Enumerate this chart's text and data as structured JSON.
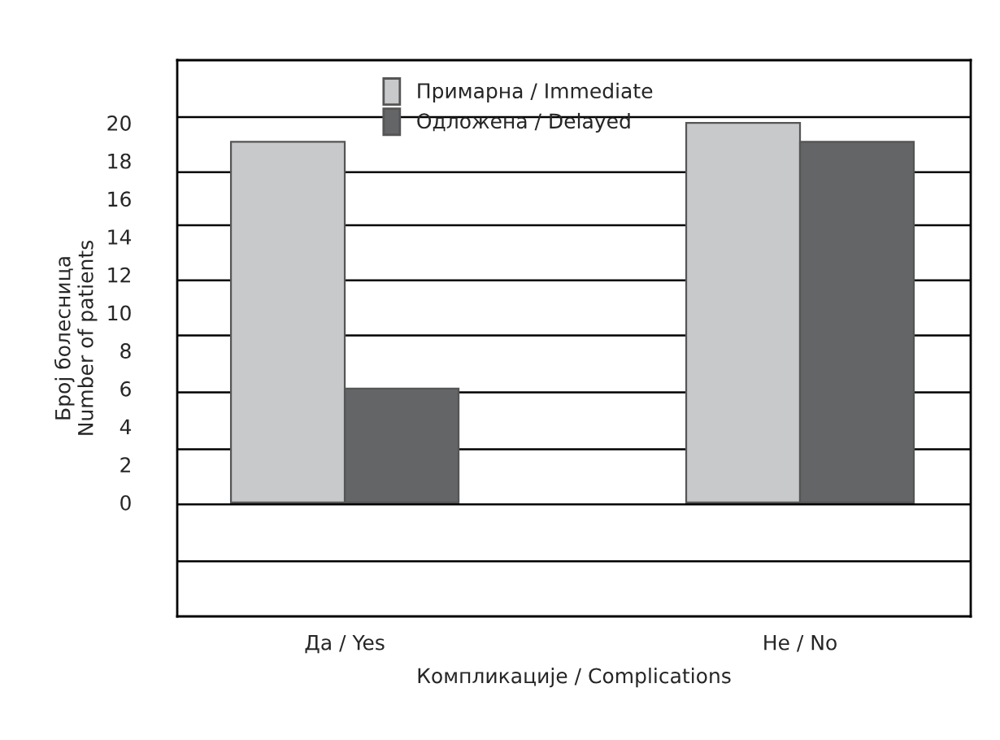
{
  "chart_data": {
    "type": "bar",
    "xlabel": "Компликације / Complications",
    "ylabel": "Број болесница\nNumber of patients",
    "categories": [
      "Да / Yes",
      "Не / No"
    ],
    "series": [
      {
        "name": "Примарна / Immediate",
        "color": "#c8c9cb",
        "values": [
          19,
          20
        ]
      },
      {
        "name": "Одложена / Delayed",
        "color": "#646567",
        "values": [
          6,
          19
        ]
      }
    ],
    "ylim": [
      -6,
      23.3
    ],
    "yticks": [
      0,
      2,
      4,
      6,
      8,
      10,
      12,
      14,
      16,
      18,
      20,
      {
        "value": -3.1,
        "label": null
      },
      {
        "value": -0.1,
        "label": null
      },
      {
        "value": 2.8,
        "label": null
      },
      {
        "value": 5.8,
        "label": null
      },
      {
        "value": 8.8,
        "label": null
      },
      {
        "value": 11.7,
        "label": null
      },
      {
        "value": 14.6,
        "label": null
      },
      {
        "value": 17.4,
        "label": null
      },
      {
        "value": 20.3,
        "label": null
      }
    ],
    "grid": "y",
    "legend": "top"
  }
}
